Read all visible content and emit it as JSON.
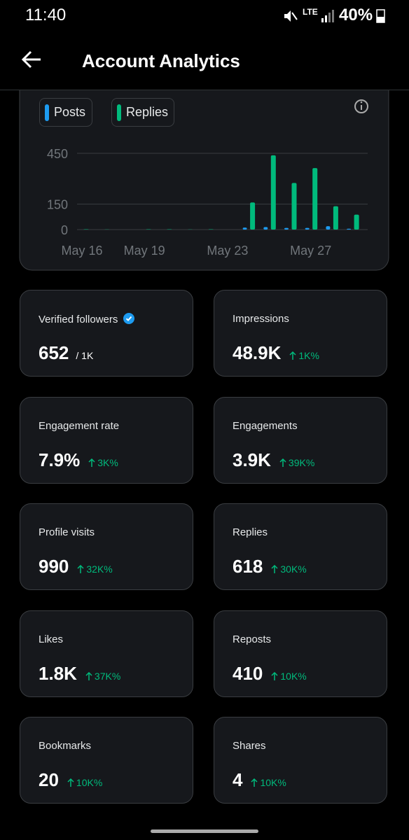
{
  "status_bar": {
    "time": "11:40",
    "network": "LTE",
    "battery": "40%"
  },
  "header": {
    "title": "Account Analytics"
  },
  "chart_data": {
    "type": "bar",
    "categories": [
      "May 16",
      null,
      null,
      "May 19",
      null,
      null,
      null,
      "May 23",
      null,
      null,
      null,
      "May 27",
      null,
      null
    ],
    "series": [
      {
        "name": "Posts",
        "color": "#1d9bf0",
        "values": [
          0,
          0,
          0,
          0,
          0,
          0,
          0,
          0,
          12,
          15,
          10,
          10,
          20,
          5
        ]
      },
      {
        "name": "Replies",
        "color": "#00ba7c",
        "values": [
          2,
          1,
          0,
          2,
          2,
          1,
          2,
          0,
          160,
          438,
          275,
          363,
          138,
          88
        ]
      }
    ],
    "ylim": [
      0,
      450
    ],
    "yticks": [
      0,
      150,
      450
    ],
    "grid": true
  },
  "metrics": [
    {
      "label": "Verified followers",
      "value": "652",
      "total": "/ 1K"
    },
    {
      "label": "Impressions",
      "value": "48.9K",
      "change": "1K%"
    },
    {
      "label": "Engagement rate",
      "value": "7.9%",
      "change": "3K%"
    },
    {
      "label": "Engagements",
      "value": "3.9K",
      "change": "39K%"
    },
    {
      "label": "Profile visits",
      "value": "990",
      "change": "32K%"
    },
    {
      "label": "Replies",
      "value": "618",
      "change": "30K%"
    },
    {
      "label": "Likes",
      "value": "1.8K",
      "change": "37K%"
    },
    {
      "label": "Reposts",
      "value": "410",
      "change": "10K%"
    },
    {
      "label": "Bookmarks",
      "value": "20",
      "change": "10K%"
    },
    {
      "label": "Shares",
      "value": "4",
      "change": "10K%"
    }
  ]
}
